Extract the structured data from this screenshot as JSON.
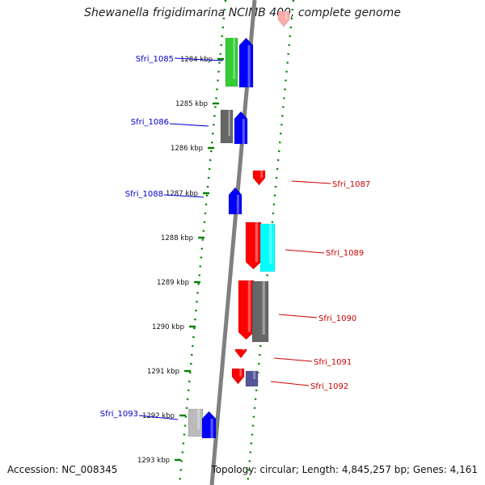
{
  "title": "Shewanella frigidimarina NCIMB 400, complete genome",
  "accession": "Accession: NC_008345",
  "stats": "Topology: circular; Length: 4,845,257 bp; Genes: 4,161",
  "colors": {
    "backbone": "#808080",
    "dots": "#008000",
    "label_left": "#0000cc",
    "label_right": "#cc0000",
    "blue": "#0000ff",
    "red": "#ff0000",
    "green": "#33cc33",
    "gray": "#666666",
    "lightgray": "#bbbbbb",
    "cyan": "#00ffff",
    "purple": "#555599",
    "pink": "#ffaaaa"
  },
  "kbp_ticks": [
    "1284 kbp",
    "1285 kbp",
    "1286 kbp",
    "1287 kbp",
    "1288 kbp",
    "1289 kbp",
    "1290 kbp",
    "1291 kbp",
    "1292 kbp",
    "1293 kbp"
  ],
  "gene_labels": [
    {
      "text": "Sfri_1085",
      "side": "left"
    },
    {
      "text": "Sfri_1086",
      "side": "left"
    },
    {
      "text": "Sfri_1087",
      "side": "right"
    },
    {
      "text": "Sfri_1088",
      "side": "left"
    },
    {
      "text": "Sfri_1089",
      "side": "right"
    },
    {
      "text": "Sfri_1090",
      "side": "right"
    },
    {
      "text": "Sfri_1091",
      "side": "right"
    },
    {
      "text": "Sfri_1092",
      "side": "right"
    },
    {
      "text": "Sfri_1093",
      "side": "left"
    }
  ]
}
